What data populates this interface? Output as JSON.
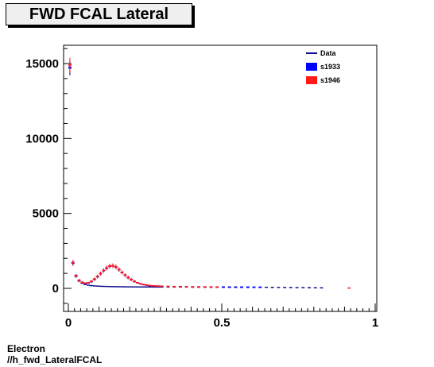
{
  "chart_data": {
    "type": "line",
    "title": "FWD FCAL Lateral",
    "xlim": [
      0,
      1
    ],
    "ylim": [
      -1500,
      16500
    ],
    "x_ticks": [
      {
        "value": 0,
        "label": "0"
      },
      {
        "value": 0.5,
        "label": "0.5"
      },
      {
        "value": 1,
        "label": "1"
      }
    ],
    "y_ticks": [
      {
        "value": 0,
        "label": "0"
      },
      {
        "value": 5000,
        "label": "5000"
      },
      {
        "value": 10000,
        "label": "10000"
      },
      {
        "value": 15000,
        "label": "15000"
      }
    ],
    "legend": [
      {
        "name": "Data",
        "color": "#0a0a8c",
        "style": "line"
      },
      {
        "name": "s1933",
        "color": "#0000ff",
        "style": "box"
      },
      {
        "name": "s1946",
        "color": "#ff1a1a",
        "style": "box"
      }
    ],
    "legend_position": "top-right",
    "bin_width": 0.01,
    "series": [
      {
        "name": "Data",
        "color": "#0a0a8c",
        "x": [
          0.005,
          0.015,
          0.025,
          0.035,
          0.045,
          0.055,
          0.065,
          0.075,
          0.085,
          0.095,
          0.105,
          0.115,
          0.125,
          0.135,
          0.145,
          0.155,
          0.165,
          0.175,
          0.185,
          0.195,
          0.205,
          0.215,
          0.225,
          0.235,
          0.245,
          0.255,
          0.265,
          0.275,
          0.285,
          0.295,
          0.305,
          0.325,
          0.345,
          0.365,
          0.385,
          0.405,
          0.425,
          0.445,
          0.465,
          0.485,
          0.505,
          0.525,
          0.545,
          0.565,
          0.585,
          0.605,
          0.625,
          0.645,
          0.665,
          0.685,
          0.705,
          0.725,
          0.745,
          0.765,
          0.785,
          0.805,
          0.825
        ],
        "y": [
          14700,
          1680,
          820,
          500,
          340,
          260,
          210,
          180,
          160,
          150,
          140,
          130,
          125,
          120,
          115,
          110,
          108,
          105,
          102,
          100,
          98,
          96,
          95,
          94,
          93,
          92,
          91,
          90,
          90,
          89,
          89,
          88,
          88,
          87,
          87,
          86,
          86,
          85,
          85,
          84,
          84,
          83,
          82,
          80,
          78,
          76,
          74,
          70,
          66,
          62,
          58,
          54,
          50,
          46,
          42,
          38,
          35
        ]
      },
      {
        "name": "s1933",
        "color": "#0000ff",
        "x": [
          0.005,
          0.015,
          0.025,
          0.035,
          0.045,
          0.055,
          0.065,
          0.075,
          0.085,
          0.095,
          0.105,
          0.115,
          0.125,
          0.135,
          0.145,
          0.155,
          0.165,
          0.175,
          0.185,
          0.195,
          0.205,
          0.215,
          0.225,
          0.235,
          0.245,
          0.255,
          0.265,
          0.275,
          0.285,
          0.295,
          0.305,
          0.325,
          0.345,
          0.365,
          0.385,
          0.405,
          0.425,
          0.445,
          0.465,
          0.485,
          0.505,
          0.525,
          0.545,
          0.565,
          0.585,
          0.605,
          0.625
        ],
        "y": [
          14750,
          1700,
          830,
          520,
          380,
          330,
          360,
          450,
          600,
          780,
          980,
          1180,
          1350,
          1480,
          1500,
          1420,
          1250,
          1060,
          880,
          720,
          580,
          460,
          370,
          300,
          250,
          210,
          180,
          165,
          150,
          140,
          130,
          120,
          112,
          106,
          100,
          95,
          92,
          90,
          88,
          86,
          84,
          82,
          80,
          78,
          76,
          74,
          70
        ]
      },
      {
        "name": "s1946",
        "color": "#ff1a1a",
        "x": [
          0.005,
          0.015,
          0.025,
          0.035,
          0.045,
          0.055,
          0.065,
          0.075,
          0.085,
          0.095,
          0.105,
          0.115,
          0.125,
          0.135,
          0.145,
          0.155,
          0.165,
          0.175,
          0.185,
          0.195,
          0.205,
          0.215,
          0.225,
          0.235,
          0.245,
          0.255,
          0.265,
          0.275,
          0.285,
          0.295,
          0.305,
          0.325,
          0.345,
          0.365,
          0.385,
          0.405,
          0.425,
          0.445,
          0.465,
          0.485
        ],
        "y": [
          14900,
          1720,
          850,
          540,
          400,
          350,
          380,
          470,
          620,
          800,
          1000,
          1200,
          1370,
          1490,
          1510,
          1430,
          1260,
          1070,
          890,
          730,
          590,
          470,
          380,
          310,
          260,
          220,
          190,
          170,
          155,
          145,
          135,
          124,
          115,
          108,
          102,
          97,
          93,
          91,
          89,
          87
        ]
      }
    ],
    "outliers": [
      {
        "series": "s1946",
        "x": 0.915,
        "y": 20
      }
    ]
  },
  "footer": {
    "line1": "Electron",
    "line2": "//h_fwd_LateralFCAL"
  }
}
